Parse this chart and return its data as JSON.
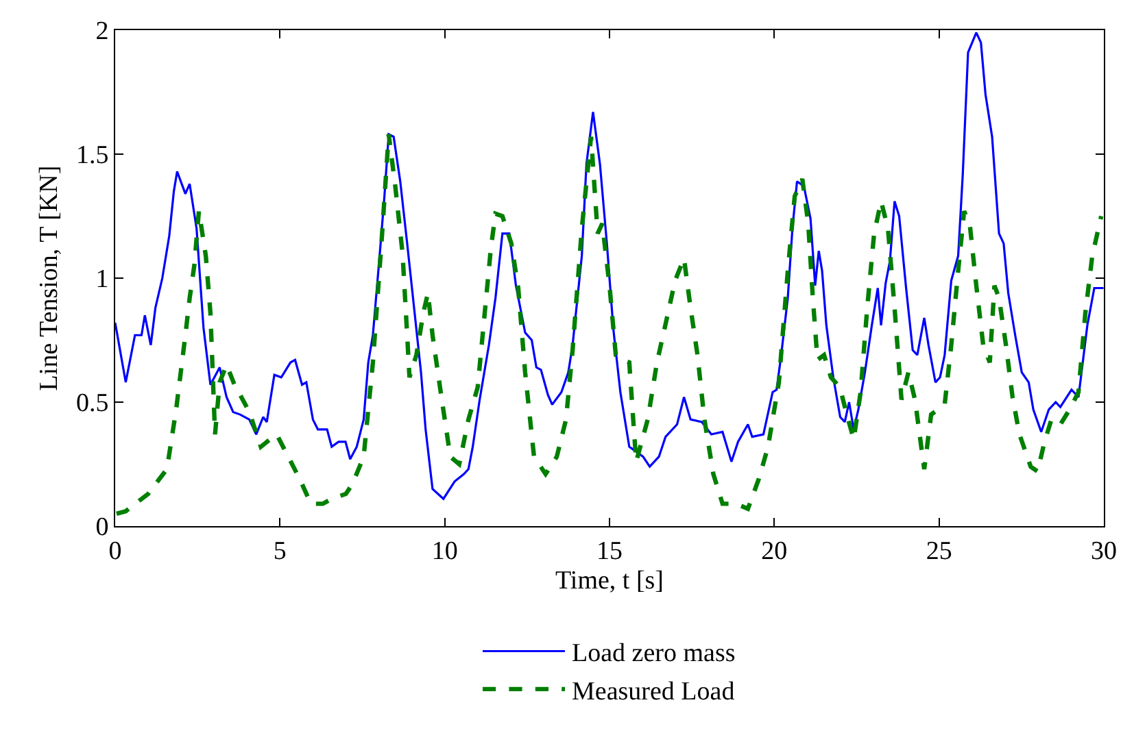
{
  "chart_data": {
    "type": "line",
    "xlabel": "Time, t [s]",
    "ylabel": "Line Tension, T [KN]",
    "xlim": [
      0,
      30
    ],
    "xticks": [
      0,
      5,
      10,
      15,
      20,
      25,
      30
    ],
    "ylim": [
      0,
      2
    ],
    "yticks": [
      0,
      0.5,
      1,
      1.5,
      2
    ],
    "grid": false,
    "legend": "bottom",
    "marker": "none",
    "series": [
      {
        "name": "Load zero mass",
        "color": "#0000ff",
        "line_style": "solid",
        "x": [
          0.0,
          0.32,
          0.6,
          0.8,
          0.9,
          1.08,
          1.22,
          1.43,
          1.64,
          1.78,
          1.88,
          2.13,
          2.26,
          2.47,
          2.68,
          2.89,
          3.17,
          3.38,
          3.58,
          3.79,
          4.07,
          4.28,
          4.49,
          4.6,
          4.83,
          5.04,
          5.18,
          5.32,
          5.46,
          5.67,
          5.8,
          6.0,
          6.15,
          6.43,
          6.57,
          6.78,
          6.99,
          7.13,
          7.33,
          7.54,
          7.68,
          7.82,
          8.03,
          8.17,
          8.3,
          8.45,
          8.65,
          8.86,
          9.07,
          9.28,
          9.42,
          9.63,
          9.96,
          10.3,
          10.58,
          10.72,
          10.85,
          11.06,
          11.34,
          11.54,
          11.75,
          11.96,
          12.16,
          12.44,
          12.64,
          12.78,
          12.92,
          13.13,
          13.26,
          13.54,
          13.75,
          13.88,
          14.16,
          14.3,
          14.5,
          14.71,
          14.92,
          15.12,
          15.33,
          15.6,
          15.81,
          16.02,
          16.22,
          16.5,
          16.7,
          17.05,
          17.26,
          17.46,
          17.8,
          18.09,
          18.43,
          18.7,
          18.9,
          19.2,
          19.33,
          19.67,
          19.95,
          20.07,
          20.21,
          20.41,
          20.55,
          20.69,
          20.9,
          21.1,
          21.24,
          21.35,
          21.45,
          21.58,
          21.79,
          22.0,
          22.14,
          22.27,
          22.41,
          22.55,
          22.75,
          22.96,
          23.14,
          23.24,
          23.38,
          23.51,
          23.65,
          23.79,
          24.0,
          24.2,
          24.34,
          24.55,
          24.68,
          24.89,
          25.03,
          25.17,
          25.37,
          25.58,
          25.72,
          25.88,
          26.13,
          26.27,
          26.41,
          26.61,
          26.82,
          26.96,
          27.1,
          27.31,
          27.51,
          27.72,
          27.86,
          28.1,
          28.33,
          28.54,
          28.68,
          29.02,
          29.23,
          29.5,
          29.71,
          29.99
        ],
        "values": [
          0.82,
          0.58,
          0.77,
          0.77,
          0.85,
          0.73,
          0.88,
          1.0,
          1.17,
          1.35,
          1.43,
          1.34,
          1.38,
          1.2,
          0.8,
          0.57,
          0.64,
          0.52,
          0.46,
          0.45,
          0.43,
          0.37,
          0.44,
          0.42,
          0.61,
          0.6,
          0.63,
          0.66,
          0.67,
          0.57,
          0.58,
          0.43,
          0.39,
          0.39,
          0.32,
          0.34,
          0.34,
          0.27,
          0.32,
          0.43,
          0.66,
          0.77,
          1.1,
          1.33,
          1.58,
          1.57,
          1.39,
          1.14,
          0.88,
          0.62,
          0.39,
          0.15,
          0.11,
          0.18,
          0.21,
          0.23,
          0.32,
          0.51,
          0.73,
          0.92,
          1.18,
          1.18,
          0.97,
          0.78,
          0.75,
          0.64,
          0.63,
          0.53,
          0.49,
          0.54,
          0.62,
          0.73,
          1.09,
          1.46,
          1.67,
          1.46,
          1.14,
          0.79,
          0.54,
          0.32,
          0.3,
          0.28,
          0.24,
          0.28,
          0.36,
          0.41,
          0.52,
          0.43,
          0.42,
          0.37,
          0.38,
          0.26,
          0.34,
          0.41,
          0.36,
          0.37,
          0.54,
          0.55,
          0.69,
          0.92,
          1.2,
          1.39,
          1.37,
          1.24,
          0.97,
          1.11,
          1.03,
          0.81,
          0.6,
          0.44,
          0.42,
          0.5,
          0.39,
          0.47,
          0.62,
          0.81,
          0.96,
          0.81,
          0.98,
          1.07,
          1.31,
          1.25,
          0.96,
          0.71,
          0.69,
          0.84,
          0.73,
          0.58,
          0.6,
          0.69,
          0.99,
          1.09,
          1.42,
          1.91,
          1.99,
          1.95,
          1.74,
          1.57,
          1.18,
          1.14,
          0.94,
          0.77,
          0.62,
          0.58,
          0.47,
          0.38,
          0.47,
          0.5,
          0.48,
          0.55,
          0.52,
          0.81,
          0.96,
          0.96
        ]
      },
      {
        "name": "Measured Load",
        "color": "#007f00",
        "line_style": "dashed",
        "x": [
          0.04,
          0.32,
          1.0,
          1.57,
          1.85,
          2.13,
          2.26,
          2.4,
          2.54,
          2.75,
          2.89,
          3.03,
          3.17,
          3.38,
          3.65,
          3.79,
          4.07,
          4.42,
          4.7,
          4.9,
          5.25,
          5.6,
          5.94,
          6.3,
          6.57,
          7.0,
          7.2,
          7.54,
          7.82,
          8.1,
          8.3,
          8.5,
          8.72,
          8.86,
          8.93,
          9.14,
          9.35,
          9.49,
          9.63,
          9.9,
          10.17,
          10.44,
          10.72,
          11.0,
          11.2,
          11.4,
          11.54,
          11.75,
          12.02,
          12.23,
          12.44,
          12.71,
          13.06,
          13.4,
          13.68,
          13.88,
          14.16,
          14.44,
          14.64,
          14.78,
          15.0,
          15.19,
          15.4,
          15.6,
          15.74,
          15.81,
          16.16,
          16.44,
          16.71,
          16.99,
          17.26,
          17.46,
          17.67,
          17.88,
          18.15,
          18.43,
          18.84,
          19.2,
          19.53,
          19.81,
          20.14,
          20.41,
          20.62,
          20.85,
          21.03,
          21.17,
          21.31,
          21.51,
          21.72,
          21.99,
          22.2,
          22.41,
          22.62,
          22.82,
          23.03,
          23.24,
          23.45,
          23.65,
          23.86,
          24.07,
          24.27,
          24.55,
          24.76,
          25.17,
          25.37,
          25.58,
          25.76,
          25.93,
          26.13,
          26.34,
          26.54,
          26.68,
          26.82,
          27.03,
          27.23,
          27.44,
          27.78,
          27.99,
          28.2,
          28.41,
          28.68,
          28.96,
          29.23,
          29.44,
          29.65,
          29.92
        ],
        "values": [
          0.05,
          0.06,
          0.13,
          0.23,
          0.47,
          0.77,
          0.92,
          1.05,
          1.27,
          1.09,
          0.86,
          0.37,
          0.58,
          0.65,
          0.56,
          0.53,
          0.46,
          0.32,
          0.35,
          0.37,
          0.28,
          0.19,
          0.09,
          0.09,
          0.11,
          0.13,
          0.17,
          0.28,
          0.66,
          1.18,
          1.58,
          1.37,
          1.1,
          0.77,
          0.6,
          0.69,
          0.86,
          0.94,
          0.77,
          0.52,
          0.28,
          0.25,
          0.43,
          0.56,
          0.84,
          1.12,
          1.26,
          1.25,
          1.14,
          0.96,
          0.62,
          0.28,
          0.21,
          0.28,
          0.43,
          0.71,
          1.2,
          1.57,
          1.18,
          1.22,
          0.97,
          0.69,
          0.67,
          0.66,
          0.39,
          0.26,
          0.43,
          0.66,
          0.82,
          0.99,
          1.08,
          0.88,
          0.69,
          0.43,
          0.21,
          0.09,
          0.09,
          0.07,
          0.19,
          0.32,
          0.58,
          1.03,
          1.33,
          1.4,
          1.22,
          0.92,
          0.67,
          0.69,
          0.6,
          0.56,
          0.45,
          0.35,
          0.54,
          0.88,
          1.18,
          1.31,
          1.2,
          0.88,
          0.51,
          0.62,
          0.51,
          0.23,
          0.45,
          0.49,
          0.73,
          1.03,
          1.27,
          1.22,
          0.97,
          0.73,
          0.66,
          0.97,
          0.92,
          0.73,
          0.52,
          0.37,
          0.24,
          0.22,
          0.34,
          0.43,
          0.41,
          0.47,
          0.54,
          0.86,
          1.09,
          1.25
        ]
      }
    ]
  }
}
